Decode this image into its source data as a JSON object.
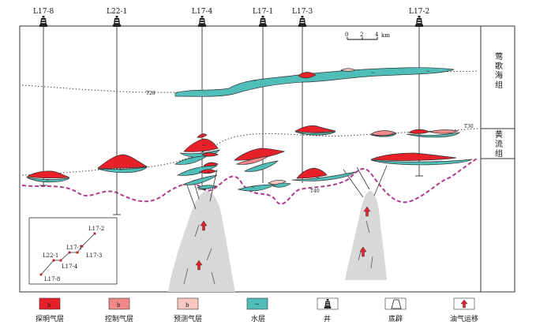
{
  "wells": [
    {
      "name": "L17-8"
    },
    {
      "name": "L22-1"
    },
    {
      "name": "L17-4"
    },
    {
      "name": "L17-1"
    },
    {
      "name": "L17-3"
    },
    {
      "name": "L17-2"
    }
  ],
  "scale_bar": {
    "ticks": [
      "0",
      "2",
      "4"
    ],
    "unit": "km"
  },
  "formations": [
    {
      "name": "莺歌海组"
    },
    {
      "name": "黄流组"
    }
  ],
  "horizons": {
    "t28": "T28",
    "t30": "T30",
    "t40": "T40"
  },
  "inset_map": {
    "labels": [
      "L17-2",
      "L22-1",
      "L17-1",
      "L17-3",
      "L17-4",
      "L17-8"
    ]
  },
  "legend": [
    {
      "label": "探明气层",
      "icon": "proven-gas-swatch",
      "color": "#e8202a"
    },
    {
      "label": "控制气层",
      "icon": "probable-gas-swatch",
      "color": "#f08a8a"
    },
    {
      "label": "预测气层",
      "icon": "possible-gas-swatch",
      "color": "#f8c8c0"
    },
    {
      "label": "水层",
      "icon": "water-swatch",
      "color": "#4fbdb8"
    },
    {
      "label": "井",
      "icon": "well-icon"
    },
    {
      "label": "底辟",
      "icon": "diapir-icon"
    },
    {
      "label": "油气运移",
      "icon": "migration-arrow-icon"
    }
  ],
  "colors": {
    "proven": "#e8202a",
    "probable": "#f08a8a",
    "possible": "#f8c8c0",
    "water": "#4fbdb8",
    "unconformity": "#b03a8e",
    "diapir": "#d8d8d8"
  }
}
